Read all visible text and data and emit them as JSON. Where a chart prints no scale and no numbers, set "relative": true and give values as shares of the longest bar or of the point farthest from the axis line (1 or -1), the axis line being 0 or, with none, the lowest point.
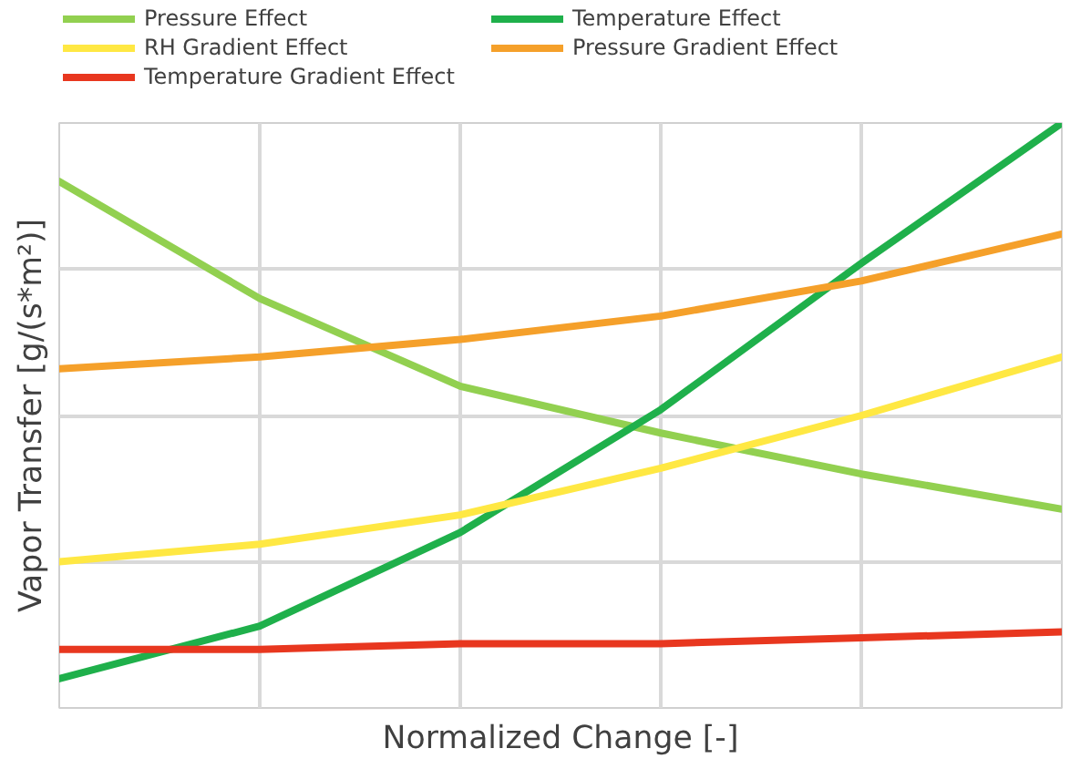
{
  "chart_data": {
    "type": "line",
    "relative": true,
    "xlabel": "Normalized Change [-]",
    "ylabel": "Vapor Transfer [g/(s*m²)]",
    "categories": [
      null,
      null,
      null,
      null,
      null,
      null
    ],
    "series": [
      {
        "name": "Pressure Effect",
        "color": "#92d050",
        "values": [
          0.9,
          0.7,
          0.55,
          0.47,
          0.4,
          0.34
        ]
      },
      {
        "name": "Temperature Effect",
        "color": "#1fb04b",
        "values": [
          0.05,
          0.14,
          0.3,
          0.51,
          0.76,
          1.0
        ]
      },
      {
        "name": "RH Gradient Effect",
        "color": "#ffe843",
        "values": [
          0.25,
          0.28,
          0.33,
          0.41,
          0.5,
          0.6
        ]
      },
      {
        "name": "Pressure Gradient Effect",
        "color": "#f5a02a",
        "values": [
          0.58,
          0.6,
          0.63,
          0.67,
          0.73,
          0.81
        ]
      },
      {
        "name": "Temperature Gradient Effect",
        "color": "#e8371f",
        "values": [
          0.1,
          0.1,
          0.11,
          0.11,
          0.12,
          0.13
        ]
      }
    ],
    "grid": true,
    "legend": "top",
    "marker": "none",
    "line_style": "solid"
  }
}
